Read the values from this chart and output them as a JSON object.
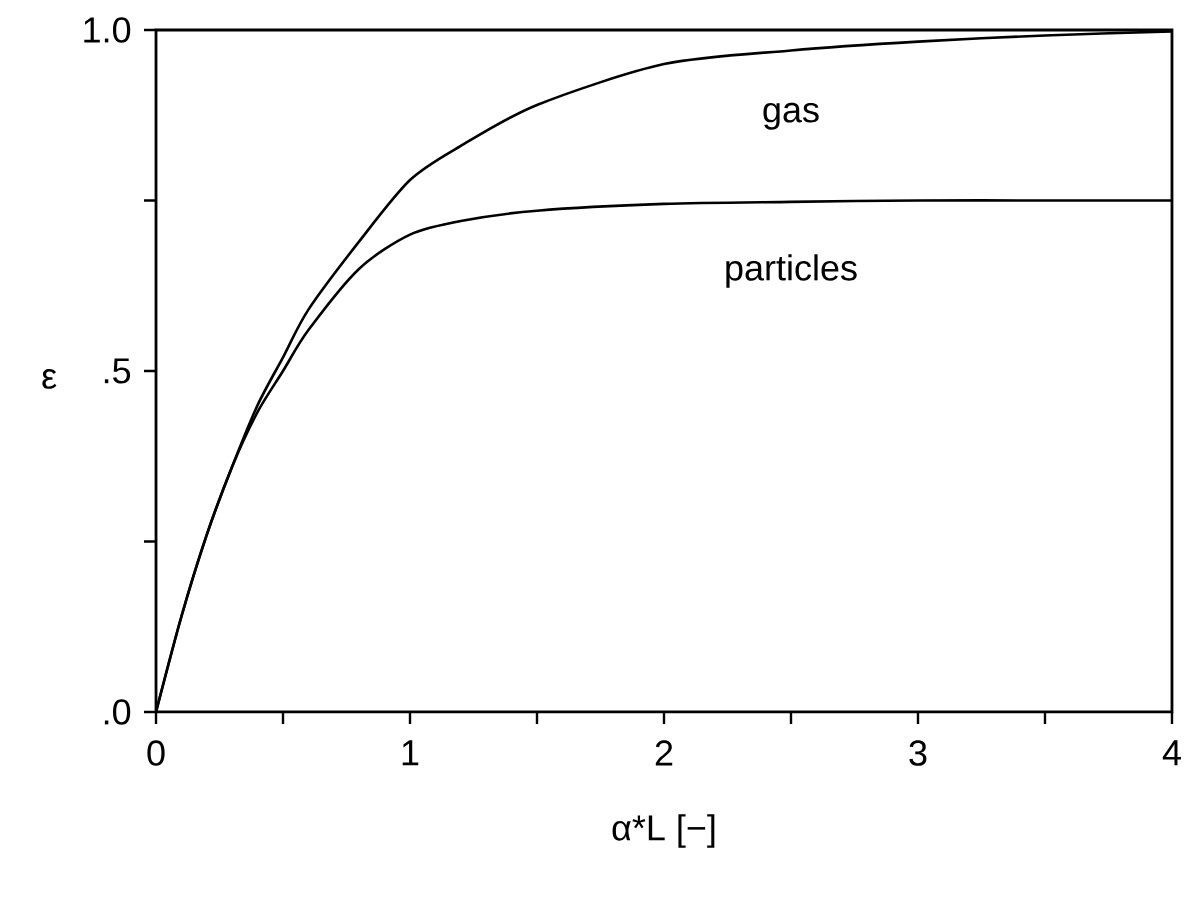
{
  "chart_data": {
    "type": "line",
    "xlabel": "α*L [−]",
    "ylabel": "ε",
    "xlim": [
      0,
      4
    ],
    "ylim": [
      0,
      1
    ],
    "xticks": [
      0,
      {
        "value": 0.5,
        "label": null
      },
      1,
      {
        "value": 1.5,
        "label": null
      },
      2,
      {
        "value": 2.5,
        "label": null
      },
      3,
      {
        "value": 3.5,
        "label": null
      },
      4
    ],
    "yticks": [
      {
        "value": 0,
        "label": ".0"
      },
      {
        "value": 0.25,
        "label": null
      },
      {
        "value": 0.5,
        "label": ".5"
      },
      {
        "value": 0.75,
        "label": null
      },
      {
        "value": 1,
        "label": "1.0"
      }
    ],
    "x": [
      0,
      0.1,
      0.2,
      0.3,
      0.4,
      0.5,
      0.6,
      0.8,
      1.0,
      1.2,
      1.5,
      2,
      2.5,
      3,
      3.5,
      4
    ],
    "series": [
      {
        "name": "gas",
        "color": "#000000",
        "values": [
          0,
          0.14,
          0.26,
          0.36,
          0.45,
          0.52,
          0.59,
          0.69,
          0.78,
          0.83,
          0.89,
          0.95,
          0.97,
          0.983,
          0.992,
          0.998
        ]
      },
      {
        "name": "particles",
        "color": "#000000",
        "values": [
          0,
          0.14,
          0.26,
          0.36,
          0.44,
          0.5,
          0.56,
          0.65,
          0.7,
          0.72,
          0.735,
          0.745,
          0.748,
          0.75,
          0.75,
          0.75
        ]
      }
    ],
    "grid": false,
    "marker": "none",
    "line_style": "solid"
  }
}
